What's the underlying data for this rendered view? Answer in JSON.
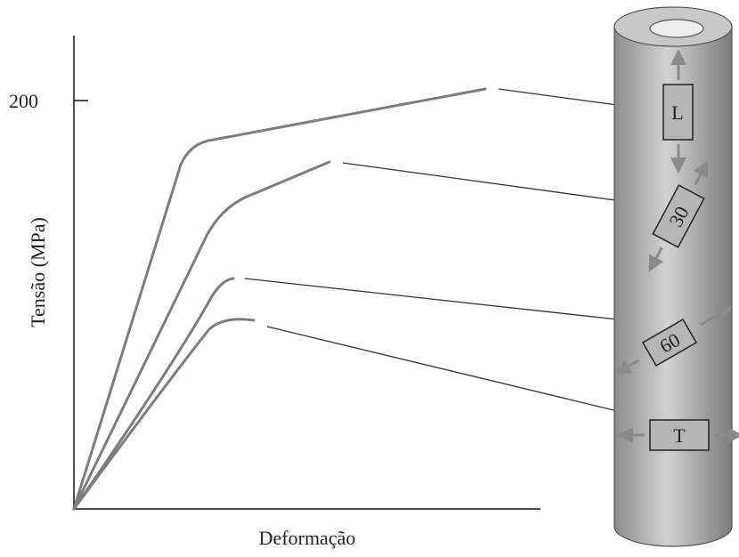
{
  "axes": {
    "y_label": "Tensão (MPa)",
    "x_label": "Deformação",
    "y_tick": "200"
  },
  "specimens": {
    "L": "L",
    "a30": "30",
    "a60": "60",
    "T": "T"
  }
}
